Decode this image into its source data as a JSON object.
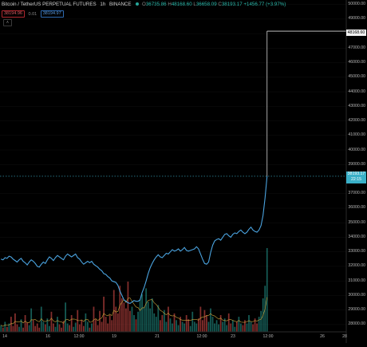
{
  "legend": {
    "symbol": "Bitcoin / TetherUS PERPETUAL FUTURES",
    "interval": "1h",
    "exchange": "BINANCE",
    "ohlc": [
      {
        "label": "O",
        "value": "36735.86"
      },
      {
        "label": "H",
        "value": "48168.60"
      },
      {
        "label": "L",
        "value": "36658.09"
      },
      {
        "label": "C",
        "value": "38193.17"
      }
    ],
    "change": "+1456.77 (+3.97%)"
  },
  "order": {
    "sell_price": "38194.96",
    "spread": "0.01",
    "buy_price": "38194.97"
  },
  "collapse_icon_glyph": "∧",
  "price_axis": {
    "ticks": [
      "50000.00",
      "49000.00",
      "48000.00",
      "47000.00",
      "46000.00",
      "45000.00",
      "44000.00",
      "43000.00",
      "42000.00",
      "41000.00",
      "40000.00",
      "39000.00",
      "37000.00",
      "36000.00",
      "35000.00",
      "34000.00",
      "33000.00",
      "32000.00",
      "31000.00",
      "30000.00",
      "29000.00",
      "28000.00"
    ],
    "high_label": "48168.60",
    "last_price": "38193.17",
    "countdown": "22:15"
  },
  "time_axis": [
    "14",
    "16",
    "12:00",
    "19",
    "21",
    "12:00",
    "23",
    "12:00",
    "26",
    "28"
  ],
  "colors": {
    "background": "#000000",
    "candle_line": "#4aa3df",
    "volume_up": "#26a69a",
    "volume_down": "#ef5350",
    "volume_ma": "#c8a23a",
    "last_price_line": "#3ab0c8"
  },
  "chart_data": {
    "type": "line",
    "series": [
      {
        "values": [
          32500,
          32450,
          32600,
          32550,
          32700,
          32650,
          32500,
          32400,
          32300,
          32450,
          32550,
          32350,
          32250,
          32100,
          32300,
          32450,
          32350,
          32200,
          32000,
          31950,
          32150,
          32300,
          32200,
          32450,
          32650,
          32550,
          32400,
          32600,
          32750,
          32650,
          32550,
          32450,
          32700,
          32850,
          32750,
          32650,
          32750,
          32850,
          32600,
          32500,
          32300,
          32150,
          32250,
          32350,
          32250,
          32350,
          32150,
          32050,
          31950,
          31800,
          31700,
          31500,
          31450,
          31300,
          31200,
          31000,
          30950,
          30900,
          30700,
          30300,
          30000,
          29700,
          29600,
          29500,
          29450,
          29550,
          29650,
          29600,
          29600,
          29700,
          30200,
          30550,
          31000,
          31500,
          31900,
          32200,
          32450,
          32650,
          32800,
          32650,
          32600,
          32750,
          32900,
          32850,
          33000,
          33150,
          33050,
          33100,
          33200,
          33050,
          33150,
          33300,
          33100,
          33050,
          33100,
          33150,
          33200,
          33350,
          33200,
          32850,
          32500,
          32200,
          32150,
          32300,
          32950,
          33450,
          33750,
          33850,
          33900,
          33800,
          34000,
          34200,
          34250,
          34100,
          34000,
          34200,
          34300,
          34250,
          34400,
          34500,
          34350,
          34250,
          34350,
          34550,
          34700,
          34500,
          34400,
          34350,
          34500,
          34800,
          35500,
          36700,
          38193.17
        ],
        "peak": 48168.6
      }
    ],
    "y_range": [
      27500,
      50200
    ],
    "x_ticks": [
      "14",
      "16",
      "12:00",
      "19",
      "21",
      "12:00",
      "23",
      "12:00",
      "26",
      "28"
    ],
    "volume": {
      "heights_relative": [
        0.08,
        0.05,
        0.12,
        0.06,
        0.1,
        0.18,
        0.07,
        0.22,
        0.09,
        0.06,
        0.15,
        0.05,
        0.2,
        0.11,
        0.08,
        0.28,
        0.14,
        0.07,
        0.1,
        0.05,
        0.3,
        0.12,
        0.09,
        0.16,
        0.07,
        0.24,
        0.1,
        0.06,
        0.18,
        0.09,
        0.05,
        0.13,
        0.35,
        0.1,
        0.08,
        0.2,
        0.06,
        0.11,
        0.26,
        0.09,
        0.14,
        0.07,
        0.22,
        0.12,
        0.05,
        0.1,
        0.3,
        0.15,
        0.08,
        0.25,
        0.12,
        0.42,
        0.18,
        0.1,
        0.2,
        0.14,
        0.5,
        0.3,
        0.22,
        0.55,
        0.4,
        0.35,
        0.28,
        0.6,
        0.25,
        0.3,
        0.2,
        0.15,
        0.24,
        0.38,
        0.45,
        0.3,
        0.52,
        0.36,
        0.28,
        0.4,
        0.22,
        0.18,
        0.32,
        0.14,
        0.2,
        0.26,
        0.12,
        0.3,
        0.16,
        0.1,
        0.22,
        0.14,
        0.08,
        0.18,
        0.12,
        0.1,
        0.2,
        0.15,
        0.07,
        0.24,
        0.12,
        0.1,
        0.16,
        0.3,
        0.14,
        0.26,
        0.2,
        0.12,
        0.28,
        0.18,
        0.1,
        0.14,
        0.09,
        0.2,
        0.12,
        0.16,
        0.08,
        0.22,
        0.1,
        0.14,
        0.06,
        0.12,
        0.18,
        0.1,
        0.08,
        0.14,
        0.1,
        0.2,
        0.12,
        0.09,
        0.16,
        0.1,
        0.18,
        0.25,
        0.4,
        0.55,
        1.0
      ]
    }
  }
}
